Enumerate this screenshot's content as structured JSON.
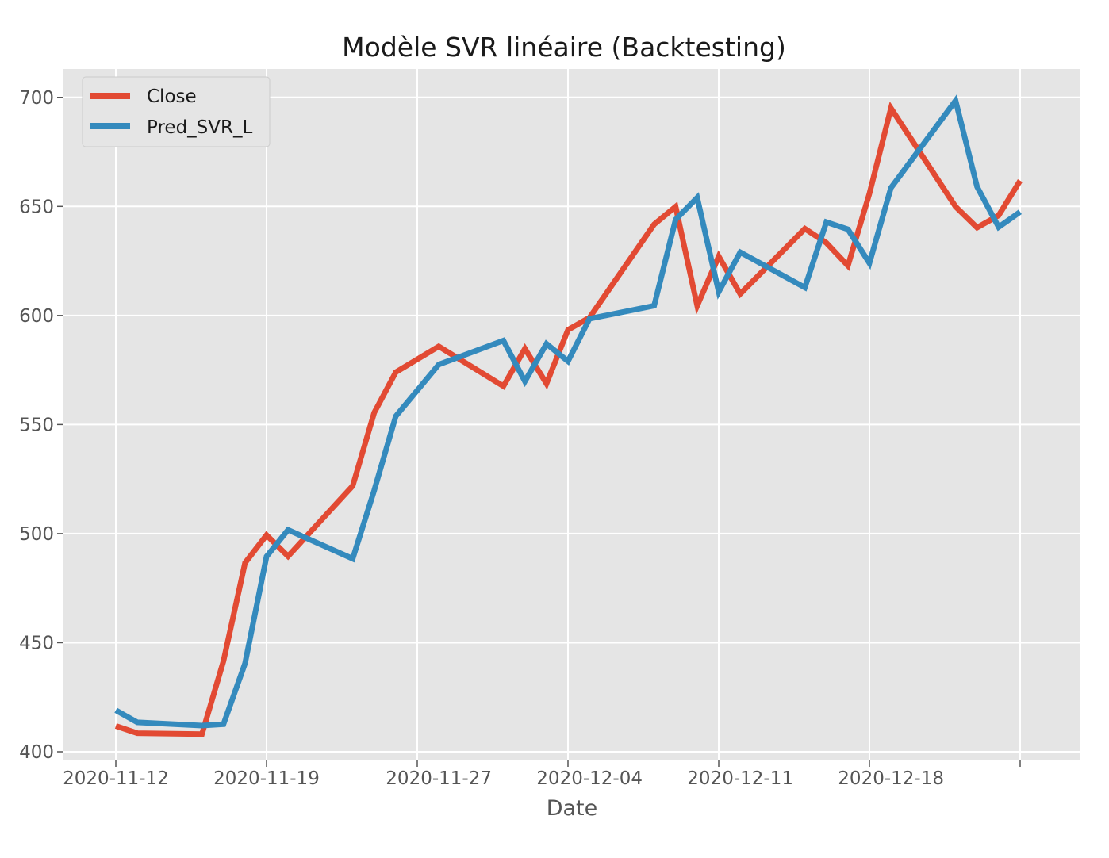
{
  "chart_data": {
    "type": "line",
    "title": "Modèle SVR linéaire (Backtesting)",
    "xlabel": "Date",
    "ylabel": "",
    "ylim": [
      396,
      713
    ],
    "y_ticks": [
      400,
      450,
      500,
      550,
      600,
      650,
      700
    ],
    "x_ticks": [
      "2020-11-12",
      "2020-11-19",
      "2020-11-27",
      "2020-12-04",
      "2020-12-11",
      "2020-12-18"
    ],
    "x": [
      "2020-11-12",
      "2020-11-13",
      "2020-11-16",
      "2020-11-17",
      "2020-11-18",
      "2020-11-19",
      "2020-11-20",
      "2020-11-23",
      "2020-11-24",
      "2020-11-25",
      "2020-11-27",
      "2020-11-30",
      "2020-12-01",
      "2020-12-02",
      "2020-12-03",
      "2020-12-04",
      "2020-12-07",
      "2020-12-08",
      "2020-12-09",
      "2020-12-10",
      "2020-12-11",
      "2020-12-14",
      "2020-12-15",
      "2020-12-16",
      "2020-12-17",
      "2020-12-18",
      "2020-12-21",
      "2020-12-22",
      "2020-12-23",
      "2020-12-24"
    ],
    "grid": true,
    "legend_position": "top-left",
    "series": [
      {
        "name": "Close",
        "color": "#E24A33",
        "values": [
          411.8,
          408.5,
          408.1,
          441.6,
          486.6,
          499.3,
          489.6,
          521.9,
          555.4,
          574.0,
          585.8,
          567.6,
          584.8,
          568.8,
          593.4,
          599.0,
          641.8,
          649.9,
          604.5,
          627.1,
          609.9,
          639.8,
          633.3,
          622.8,
          655.9,
          695.0,
          649.9,
          640.3,
          645.9,
          661.8
        ]
      },
      {
        "name": "Pred_SVR_L",
        "color": "#348ABD",
        "values": [
          419.0,
          413.5,
          412.0,
          412.6,
          440.5,
          489.5,
          501.7,
          488.5,
          519.8,
          553.8,
          577.5,
          588.5,
          569.8,
          587.0,
          579.0,
          598.5,
          604.5,
          644.0,
          654.0,
          610.8,
          629.0,
          612.8,
          642.8,
          639.5,
          624.0,
          658.5,
          698.5,
          659.0,
          640.5,
          647.5
        ]
      }
    ]
  }
}
